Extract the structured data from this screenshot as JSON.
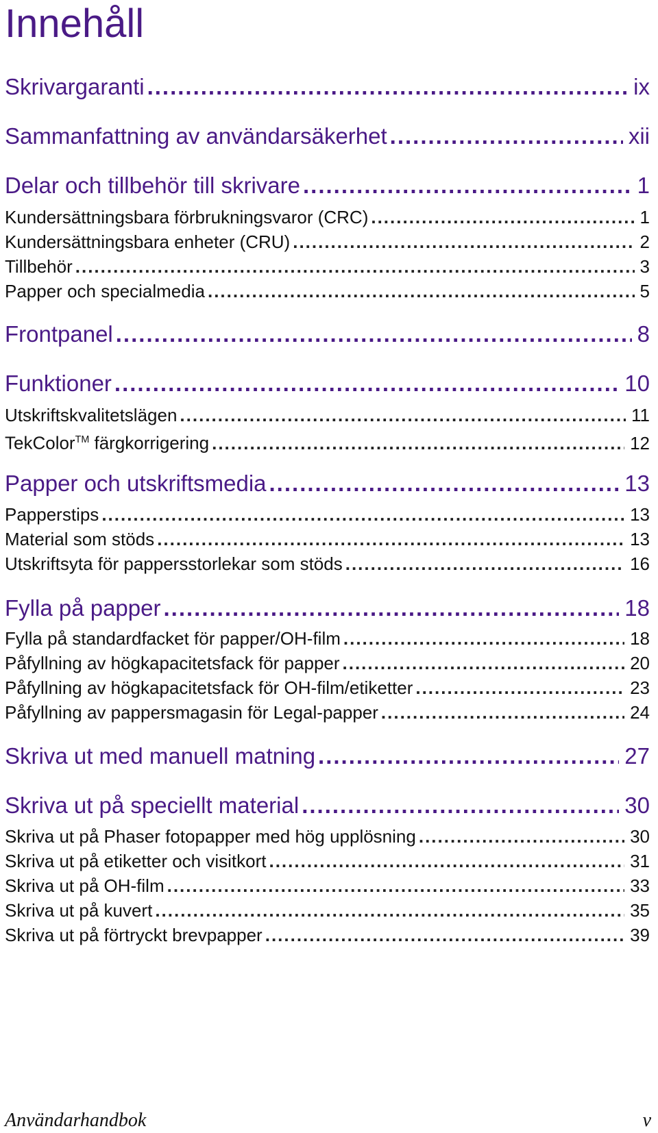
{
  "title": "Innehåll",
  "entries": [
    {
      "label": "Skrivargaranti",
      "page": "ix"
    },
    {
      "label": "Sammanfattning av användarsäkerhet",
      "page": "xii"
    },
    {
      "label": "Delar och tillbehör till skrivare",
      "page": "1"
    },
    {
      "label": "Kundersättningsbara förbrukningsvaror (CRC)",
      "page": "1"
    },
    {
      "label": "Kundersättningsbara enheter (CRU)",
      "page": "2"
    },
    {
      "label": "Tillbehör",
      "page": "3"
    },
    {
      "label": "Papper och specialmedia",
      "page": "5"
    },
    {
      "label": "Frontpanel",
      "page": "8"
    },
    {
      "label": "Funktioner",
      "page": "10"
    },
    {
      "label": "Utskriftskvalitetslägen",
      "page": "11"
    },
    {
      "label": "TekColor",
      "label_suffix": "TM",
      "label_after": " färgkorrigering",
      "page": "12"
    },
    {
      "label": "Papper och utskriftsmedia",
      "page": "13"
    },
    {
      "label": "Papperstips",
      "page": "13"
    },
    {
      "label": "Material som stöds",
      "page": "13"
    },
    {
      "label": "Utskriftsyta för pappersstorlekar som stöds",
      "page": "16"
    },
    {
      "label": "Fylla på papper",
      "page": "18"
    },
    {
      "label": "Fylla på standardfacket för papper/OH-film",
      "page": "18"
    },
    {
      "label": "Påfyllning av högkapacitetsfack för papper",
      "page": "20"
    },
    {
      "label": "Påfyllning av högkapacitetsfack för OH-film/etiketter",
      "page": "23"
    },
    {
      "label": "Påfyllning av pappersmagasin för Legal-papper",
      "page": "24"
    },
    {
      "label": "Skriva ut med manuell matning",
      "page": "27"
    },
    {
      "label": "Skriva ut på speciellt material",
      "page": "30"
    },
    {
      "label": "Skriva ut på Phaser fotopapper med hög upplösning",
      "page": "30"
    },
    {
      "label": "Skriva ut på etiketter och visitkort",
      "page": "31"
    },
    {
      "label": "Skriva ut på OH-film",
      "page": "33"
    },
    {
      "label": "Skriva ut på kuvert",
      "page": "35"
    },
    {
      "label": "Skriva ut på förtryckt brevpapper",
      "page": "39"
    }
  ],
  "footer": {
    "manual_name": "Användarhandbok",
    "page_number": "v"
  },
  "colors": {
    "heading": "#4a1a86",
    "text": "#111111"
  }
}
